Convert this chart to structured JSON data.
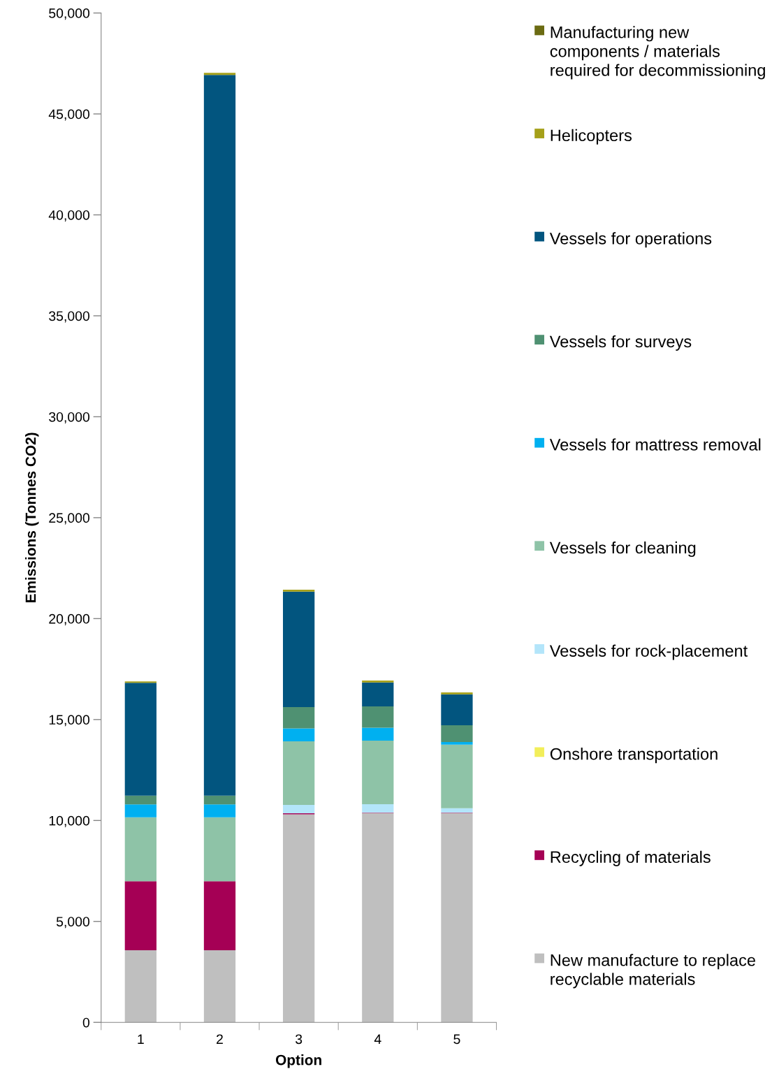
{
  "chart_data": {
    "type": "bar",
    "stacked": true,
    "xlabel": "Option",
    "ylabel": "Emissions (Tonnes CO2)",
    "categories": [
      "1",
      "2",
      "3",
      "4",
      "5"
    ],
    "ylim": [
      0,
      50000
    ],
    "yticks": [
      {
        "value": 0,
        "label": "0"
      },
      {
        "value": 5000,
        "label": "5,000"
      },
      {
        "value": 10000,
        "label": "10,000"
      },
      {
        "value": 15000,
        "label": "15,000"
      },
      {
        "value": 20000,
        "label": "20,000"
      },
      {
        "value": 25000,
        "label": "25,000"
      },
      {
        "value": 30000,
        "label": "30,000"
      },
      {
        "value": 35000,
        "label": "35,000"
      },
      {
        "value": 40000,
        "label": "40,000"
      },
      {
        "value": 45000,
        "label": "45,000"
      },
      {
        "value": 50000,
        "label": "50,000"
      }
    ],
    "grid": false,
    "legend": "right",
    "series": [
      {
        "name": "New manufacture to replace recyclable materials",
        "color": "#bfbfbf",
        "values": [
          3570,
          3570,
          10300,
          10370,
          10370
        ]
      },
      {
        "name": "Recycling of materials",
        "color": "#a50055",
        "values": [
          3420,
          3420,
          60,
          20,
          20
        ]
      },
      {
        "name": "Onshore transportation",
        "color": "#f2ee5a",
        "values": [
          null,
          null,
          0,
          0,
          0
        ]
      },
      {
        "name": "Vessels for rock-placement",
        "color": "#b3e5fa",
        "values": [
          0,
          0,
          410,
          415,
          215
        ]
      },
      {
        "name": "Vessels for cleaning",
        "color": "#8ec3a7",
        "values": [
          3170,
          3170,
          3150,
          3150,
          3150
        ]
      },
      {
        "name": "Vessels for mattress removal",
        "color": "#00b0f0",
        "values": [
          635,
          635,
          645,
          645,
          130
        ]
      },
      {
        "name": "Vessels for surveys",
        "color": "#4f9172",
        "values": [
          435,
          435,
          1050,
          1050,
          830
        ]
      },
      {
        "name": "Vessels for operations",
        "color": "#02557f",
        "values": [
          5590,
          35705,
          5725,
          1190,
          1535
        ]
      },
      {
        "name": "Helicopters",
        "color": "#a5a019",
        "values": [
          70,
          100,
          95,
          90,
          95
        ]
      },
      {
        "name": "Manufacturing new components / materials required for decommissioning",
        "color": "#6b6b12",
        "values": [
          0,
          0,
          0,
          0,
          0
        ]
      }
    ]
  }
}
